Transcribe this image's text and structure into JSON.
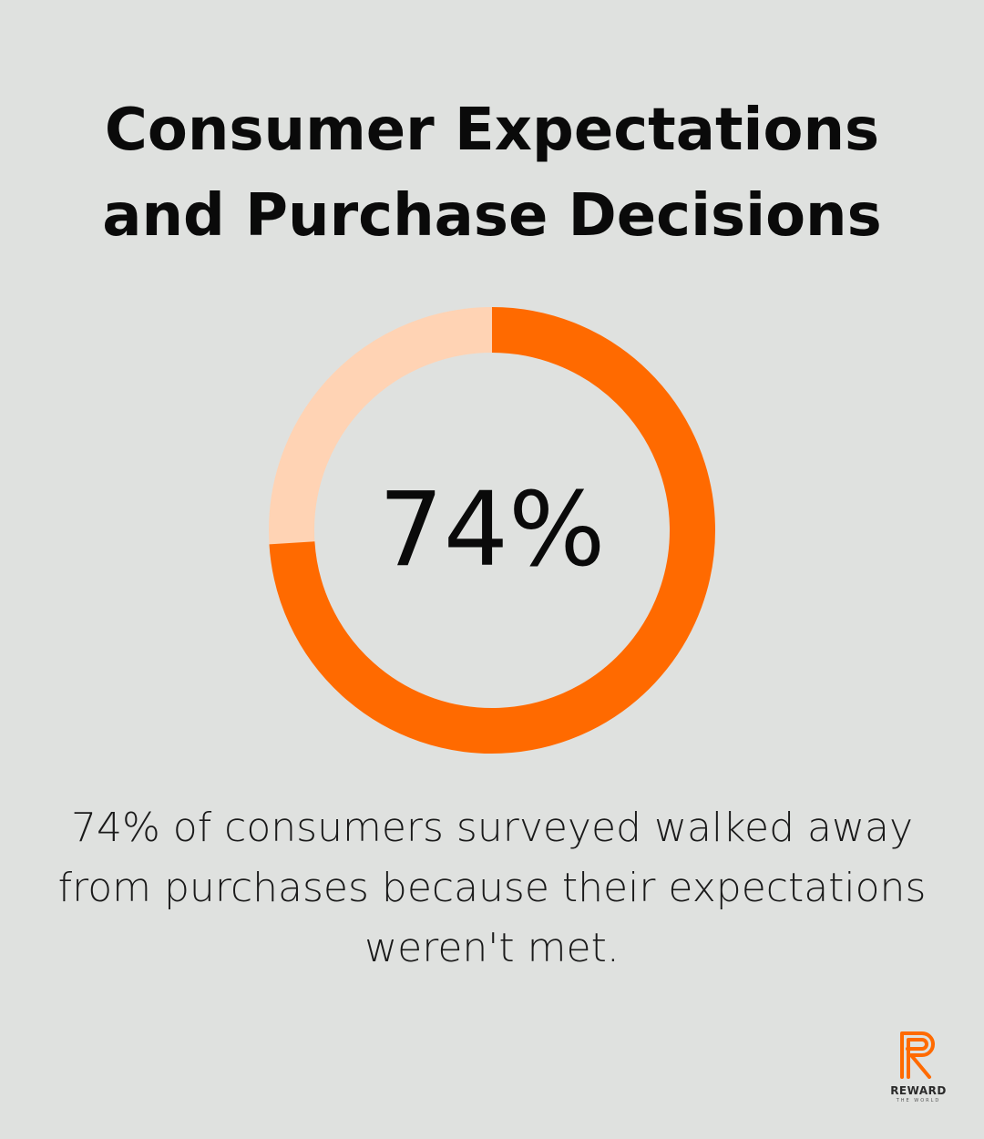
{
  "title": {
    "line1": "Consumer Expectations",
    "line2": "and Purchase Decisions"
  },
  "chart_data": {
    "type": "pie",
    "style": "donut",
    "values": [
      74,
      26
    ],
    "center_label": "74%",
    "colors": {
      "primary": "#ff6a00",
      "remainder": "#ffd3b4"
    }
  },
  "caption": {
    "line1": "74% of consumers surveyed walked away",
    "line2": "from purchases because their expectations",
    "line3": "weren't met."
  },
  "logo": {
    "name": "REWARD",
    "tagline": "THE WORLD",
    "icon": "r-monogram-icon",
    "color": "#ff6a00"
  }
}
